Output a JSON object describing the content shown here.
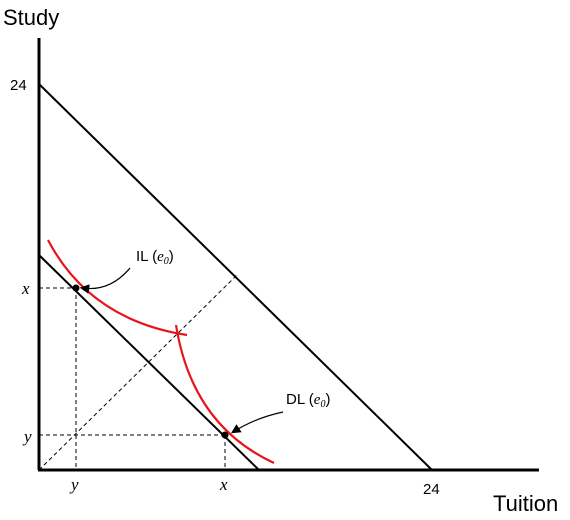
{
  "axes": {
    "y_title": "Study",
    "x_title": "Tuition",
    "y_tick_top": "24",
    "x_tick_right": "24",
    "y_tick_x": "x",
    "y_tick_y": "y",
    "x_tick_y": "y",
    "x_tick_x": "x"
  },
  "labels": {
    "il_prefix": "IL (",
    "il_var": "e",
    "il_sub": "0",
    "il_suffix": ")",
    "dl_prefix": "DL (",
    "dl_var": "e",
    "dl_sub": "0",
    "dl_suffix": ")"
  },
  "colors": {
    "curve": "#e8141b",
    "line": "#000000"
  }
}
